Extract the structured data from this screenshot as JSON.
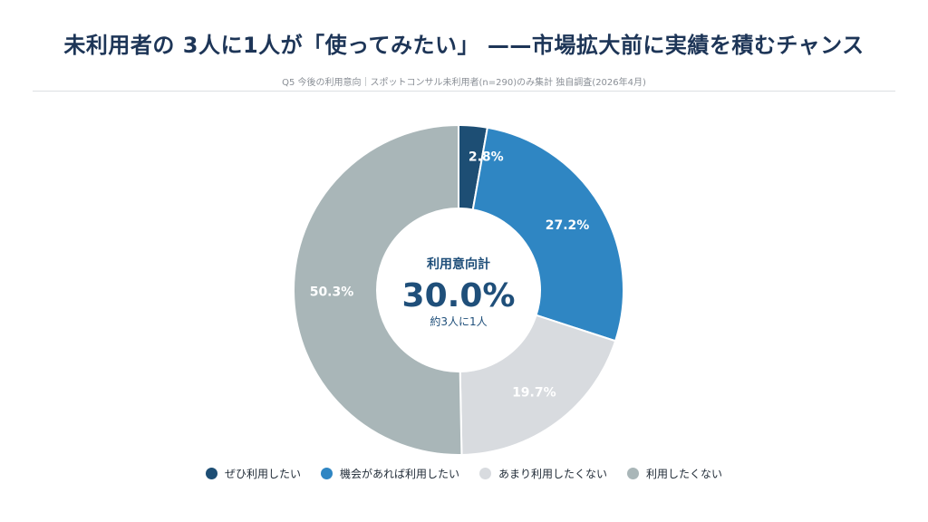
{
  "title": "未利用者の 3人に1人が「使ってみたい」 ——市場拡大前に実績を積むチャンス",
  "subtitle": "Q5 今後の利用意向｜スポットコンサル未利用者(n=290)のみ集計 独自調査(2026年4月)",
  "chart_data": {
    "type": "pie",
    "categories": [
      "ぜひ利用したい",
      "機会があれば利用したい",
      "あまり利用したくない",
      "利用したくない"
    ],
    "values": [
      2.8,
      27.2,
      19.7,
      50.3
    ],
    "value_labels": [
      "2.8%",
      "27.2%",
      "19.7%",
      "50.3%"
    ],
    "colors": [
      "#1d4e74",
      "#2f86c3",
      "#d8dbdf",
      "#a9b6b8"
    ],
    "center": {
      "label": "利用意向計",
      "value": "30.0%",
      "note": "約3人に1人"
    },
    "legend_position": "bottom"
  }
}
